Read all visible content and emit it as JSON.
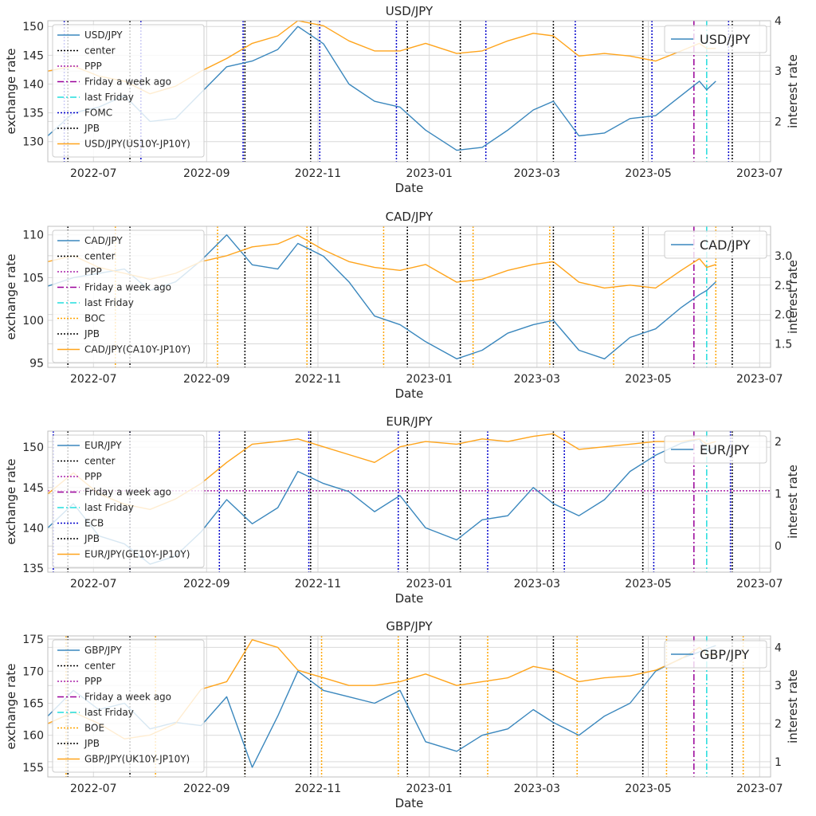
{
  "colors": {
    "rate_line": "#3a87bd",
    "spread_line": "#ffa41b",
    "center": "#000000",
    "ppp": "#aa22aa",
    "week_ago": "#990099",
    "last_friday": "#22dddd",
    "fomc": "#0000cc",
    "ecb": "#0000cc",
    "boc": "#ffa500",
    "boe": "#ffa500",
    "jpb": "#000000",
    "grid": "#d9d9d9"
  },
  "x_ticks": [
    "2022-07",
    "2022-09",
    "2022-11",
    "2023-01",
    "2023-03",
    "2023-05",
    "2023-07"
  ],
  "chart_data": [
    {
      "type": "line",
      "title": "USD/JPY",
      "xlabel": "Date",
      "ylabel": "exchange rate",
      "ylabel_right": "interest rate",
      "xlim": [
        "2022-06-06",
        "2023-07-07"
      ],
      "ylim": [
        126.5,
        151
      ],
      "ylim_right": [
        1.2,
        4.0
      ],
      "yticks": [
        130,
        135,
        140,
        145,
        150
      ],
      "yticks_right": [
        2,
        3,
        4
      ],
      "legend_inner": [
        "USD/JPY",
        "center",
        "PPP",
        "Friday a week ago",
        "last Friday",
        "FOMC",
        "JPB",
        "USD/JPY(US10Y-JP10Y)"
      ],
      "legend_right": "USD/JPY",
      "bank_kind": "fomc",
      "ppp_value": null,
      "rate_series": {
        "name": "USD/JPY",
        "x": [
          "2022-06-06",
          "2022-06-20",
          "2022-07-04",
          "2022-07-18",
          "2022-08-01",
          "2022-08-15",
          "2022-08-29",
          "2022-09-12",
          "2022-09-26",
          "2022-10-10",
          "2022-10-21",
          "2022-11-04",
          "2022-11-18",
          "2022-12-02",
          "2022-12-16",
          "2022-12-30",
          "2023-01-16",
          "2023-01-30",
          "2023-02-13",
          "2023-02-27",
          "2023-03-10",
          "2023-03-24",
          "2023-04-07",
          "2023-04-21",
          "2023-05-05",
          "2023-05-19",
          "2023-05-29",
          "2023-06-02",
          "2023-06-07"
        ],
        "values": [
          131,
          135,
          136,
          138,
          133.5,
          134,
          138.5,
          143,
          144,
          146,
          150,
          147,
          140,
          137,
          136,
          132,
          128.5,
          129,
          132,
          135.5,
          137,
          131,
          131.5,
          134,
          134.5,
          138,
          140.5,
          139,
          140.5
        ]
      },
      "spread_series": {
        "name": "USD/JPY(US10Y-JP10Y)",
        "x": [
          "2022-06-06",
          "2022-06-20",
          "2022-07-04",
          "2022-07-18",
          "2022-08-01",
          "2022-08-15",
          "2022-08-29",
          "2022-09-12",
          "2022-09-26",
          "2022-10-10",
          "2022-10-21",
          "2022-11-04",
          "2022-11-18",
          "2022-12-02",
          "2022-12-16",
          "2022-12-30",
          "2023-01-16",
          "2023-01-30",
          "2023-02-13",
          "2023-02-27",
          "2023-03-10",
          "2023-03-24",
          "2023-04-07",
          "2023-04-21",
          "2023-05-05",
          "2023-05-19",
          "2023-05-29",
          "2023-06-02",
          "2023-06-07"
        ],
        "values": [
          3.0,
          3.1,
          2.9,
          2.8,
          2.55,
          2.7,
          3.0,
          3.25,
          3.55,
          3.7,
          4.0,
          3.9,
          3.6,
          3.4,
          3.4,
          3.55,
          3.35,
          3.4,
          3.6,
          3.75,
          3.7,
          3.3,
          3.35,
          3.3,
          3.2,
          3.4,
          3.55,
          3.45,
          3.45
        ]
      },
      "events": {
        "center": [
          "2023-04-28"
        ],
        "jpb": [
          "2022-06-17",
          "2022-07-21",
          "2022-09-22",
          "2022-10-28",
          "2022-12-20",
          "2023-01-18",
          "2023-03-10",
          "2023-04-28",
          "2023-06-16"
        ],
        "bank": [
          "2022-06-15",
          "2022-07-27",
          "2022-09-21",
          "2022-11-02",
          "2022-12-14",
          "2023-02-01",
          "2023-03-22",
          "2023-05-03",
          "2023-06-14"
        ],
        "week_ago": [
          "2023-05-26"
        ],
        "last_friday": [
          "2023-06-02"
        ]
      }
    },
    {
      "type": "line",
      "title": "CAD/JPY",
      "xlabel": "Date",
      "ylabel": "exchange rate",
      "ylabel_right": "interest rate",
      "xlim": [
        "2022-06-06",
        "2023-07-07"
      ],
      "ylim": [
        94.5,
        111
      ],
      "ylim_right": [
        1.1,
        3.5
      ],
      "yticks": [
        95,
        100,
        105,
        110
      ],
      "yticks_right": [
        1.5,
        2.0,
        2.5,
        3.0
      ],
      "legend_inner": [
        "CAD/JPY",
        "center",
        "PPP",
        "Friday a week ago",
        "last Friday",
        "BOC",
        "JPB",
        "CAD/JPY(CA10Y-JP10Y)"
      ],
      "legend_right": "CAD/JPY",
      "bank_kind": "boc",
      "ppp_value": null,
      "rate_series": {
        "name": "CAD/JPY",
        "x": [
          "2022-06-06",
          "2022-06-20",
          "2022-07-04",
          "2022-07-18",
          "2022-08-01",
          "2022-08-15",
          "2022-08-29",
          "2022-09-12",
          "2022-09-26",
          "2022-10-10",
          "2022-10-21",
          "2022-11-04",
          "2022-11-18",
          "2022-12-02",
          "2022-12-16",
          "2022-12-30",
          "2023-01-16",
          "2023-01-30",
          "2023-02-13",
          "2023-02-27",
          "2023-03-10",
          "2023-03-24",
          "2023-04-07",
          "2023-04-21",
          "2023-05-05",
          "2023-05-19",
          "2023-05-29",
          "2023-06-02",
          "2023-06-07"
        ],
        "values": [
          104,
          105,
          105.5,
          106,
          103.5,
          104.5,
          107,
          110,
          106.5,
          106,
          109,
          107.5,
          104.5,
          100.5,
          99.5,
          97.5,
          95.5,
          96.5,
          98.5,
          99.5,
          100,
          96.5,
          95.5,
          98,
          99,
          101.5,
          103,
          103.5,
          104.5
        ]
      },
      "spread_series": {
        "name": "CAD/JPY(CA10Y-JP10Y)",
        "x": [
          "2022-06-06",
          "2022-06-20",
          "2022-07-04",
          "2022-07-18",
          "2022-08-01",
          "2022-08-15",
          "2022-08-29",
          "2022-09-12",
          "2022-09-26",
          "2022-10-10",
          "2022-10-21",
          "2022-11-04",
          "2022-11-18",
          "2022-12-02",
          "2022-12-16",
          "2022-12-30",
          "2023-01-16",
          "2023-01-30",
          "2023-02-13",
          "2023-02-27",
          "2023-03-10",
          "2023-03-24",
          "2023-04-07",
          "2023-04-21",
          "2023-05-05",
          "2023-05-19",
          "2023-05-29",
          "2023-06-02",
          "2023-06-07"
        ],
        "values": [
          2.9,
          3.0,
          2.8,
          2.7,
          2.6,
          2.7,
          2.9,
          3.0,
          3.15,
          3.2,
          3.35,
          3.1,
          2.9,
          2.8,
          2.75,
          2.85,
          2.55,
          2.6,
          2.75,
          2.85,
          2.9,
          2.55,
          2.45,
          2.5,
          2.45,
          2.75,
          2.95,
          2.8,
          2.85
        ]
      },
      "events": {
        "center": [
          "2023-04-28"
        ],
        "jpb": [
          "2022-06-17",
          "2022-07-21",
          "2022-09-22",
          "2022-10-28",
          "2022-12-20",
          "2023-01-18",
          "2023-03-10",
          "2023-04-28",
          "2023-06-16"
        ],
        "bank": [
          "2022-06-01",
          "2022-07-13",
          "2022-09-07",
          "2022-10-26",
          "2022-12-07",
          "2023-01-25",
          "2023-03-08",
          "2023-04-12",
          "2023-06-07"
        ],
        "week_ago": [
          "2023-05-26"
        ],
        "last_friday": [
          "2023-06-02"
        ]
      }
    },
    {
      "type": "line",
      "title": "EUR/JPY",
      "xlabel": "Date",
      "ylabel": "exchange rate",
      "ylabel_right": "interest rate",
      "xlim": [
        "2022-06-06",
        "2023-07-07"
      ],
      "ylim": [
        134.5,
        152
      ],
      "ylim_right": [
        -0.5,
        2.2
      ],
      "yticks": [
        135,
        140,
        145,
        150
      ],
      "yticks_right": [
        0,
        1,
        2
      ],
      "legend_inner": [
        "EUR/JPY",
        "center",
        "PPP",
        "Friday a week ago",
        "last Friday",
        "ECB",
        "JPB",
        "EUR/JPY(GE10Y-JP10Y)"
      ],
      "legend_right": "EUR/JPY",
      "bank_kind": "ecb",
      "ppp_value": 144.6,
      "rate_series": {
        "name": "EUR/JPY",
        "x": [
          "2022-06-06",
          "2022-06-20",
          "2022-07-04",
          "2022-07-18",
          "2022-08-01",
          "2022-08-15",
          "2022-08-29",
          "2022-09-12",
          "2022-09-26",
          "2022-10-10",
          "2022-10-21",
          "2022-11-04",
          "2022-11-18",
          "2022-12-02",
          "2022-12-16",
          "2022-12-30",
          "2023-01-16",
          "2023-01-30",
          "2023-02-13",
          "2023-02-27",
          "2023-03-10",
          "2023-03-24",
          "2023-04-07",
          "2023-04-21",
          "2023-05-05",
          "2023-05-19",
          "2023-05-29",
          "2023-06-02",
          "2023-06-07"
        ],
        "values": [
          140,
          143,
          139,
          138,
          135.5,
          136.5,
          139.5,
          143.5,
          140.5,
          142.5,
          147,
          145.5,
          144.5,
          142,
          144,
          140,
          138.5,
          141,
          141.5,
          145,
          143,
          141.5,
          143.5,
          147,
          149,
          150.5,
          151,
          149.5,
          150
        ]
      },
      "spread_series": {
        "name": "EUR/JPY(GE10Y-JP10Y)",
        "x": [
          "2022-06-06",
          "2022-06-20",
          "2022-07-04",
          "2022-07-18",
          "2022-08-01",
          "2022-08-15",
          "2022-08-29",
          "2022-09-12",
          "2022-09-26",
          "2022-10-10",
          "2022-10-21",
          "2022-11-04",
          "2022-11-18",
          "2022-12-02",
          "2022-12-16",
          "2022-12-30",
          "2023-01-16",
          "2023-01-30",
          "2023-02-13",
          "2023-02-27",
          "2023-03-10",
          "2023-03-24",
          "2023-04-07",
          "2023-04-21",
          "2023-05-05",
          "2023-05-19",
          "2023-05-29",
          "2023-06-02",
          "2023-06-07"
        ],
        "values": [
          1.0,
          1.4,
          1.0,
          0.8,
          0.7,
          0.9,
          1.2,
          1.6,
          1.95,
          2.0,
          2.05,
          1.9,
          1.75,
          1.6,
          1.9,
          2.0,
          1.95,
          2.05,
          2.0,
          2.1,
          2.15,
          1.85,
          1.9,
          1.95,
          2.0,
          2.0,
          2.05,
          1.95,
          2.0
        ]
      },
      "events": {
        "center": [
          "2023-04-28"
        ],
        "jpb": [
          "2022-06-17",
          "2022-07-21",
          "2022-09-22",
          "2022-10-28",
          "2022-12-20",
          "2023-01-18",
          "2023-03-10",
          "2023-04-28",
          "2023-06-16"
        ],
        "bank": [
          "2022-06-09",
          "2022-07-21",
          "2022-09-08",
          "2022-10-27",
          "2022-12-15",
          "2023-02-02",
          "2023-03-16",
          "2023-05-04",
          "2023-06-15"
        ],
        "week_ago": [
          "2023-05-26"
        ],
        "last_friday": [
          "2023-06-02"
        ]
      }
    },
    {
      "type": "line",
      "title": "GBP/JPY",
      "xlabel": "Date",
      "ylabel": "exchange rate",
      "ylabel_right": "interest rate",
      "xlim": [
        "2022-06-06",
        "2023-07-07"
      ],
      "ylim": [
        153.5,
        175.5
      ],
      "ylim_right": [
        0.6,
        4.3
      ],
      "yticks": [
        155,
        160,
        165,
        170,
        175
      ],
      "yticks_right": [
        1,
        2,
        3,
        4
      ],
      "legend_inner": [
        "GBP/JPY",
        "center",
        "PPP",
        "Friday a week ago",
        "last Friday",
        "BOE",
        "JPB",
        "GBP/JPY(UK10Y-JP10Y)"
      ],
      "legend_right": "GBP/JPY",
      "bank_kind": "boe",
      "ppp_value": null,
      "rate_series": {
        "name": "GBP/JPY",
        "x": [
          "2022-06-06",
          "2022-06-20",
          "2022-07-04",
          "2022-07-18",
          "2022-08-01",
          "2022-08-15",
          "2022-08-29",
          "2022-09-12",
          "2022-09-26",
          "2022-10-10",
          "2022-10-21",
          "2022-11-04",
          "2022-11-18",
          "2022-12-02",
          "2022-12-16",
          "2022-12-30",
          "2023-01-16",
          "2023-01-30",
          "2023-02-13",
          "2023-02-27",
          "2023-03-10",
          "2023-03-24",
          "2023-04-07",
          "2023-04-21",
          "2023-05-05",
          "2023-05-19",
          "2023-05-29",
          "2023-06-02",
          "2023-06-07"
        ],
        "values": [
          163,
          167,
          164,
          165,
          161,
          162,
          161.5,
          166,
          155,
          163,
          170,
          167,
          166,
          165,
          167,
          159,
          157.5,
          160,
          161,
          164,
          162,
          160,
          163,
          165,
          170,
          172,
          173,
          173.5,
          174
        ]
      },
      "spread_series": {
        "name": "GBP/JPY(UK10Y-JP10Y)",
        "x": [
          "2022-06-06",
          "2022-06-20",
          "2022-07-04",
          "2022-07-18",
          "2022-08-01",
          "2022-08-15",
          "2022-08-29",
          "2022-09-12",
          "2022-09-26",
          "2022-10-10",
          "2022-10-21",
          "2022-11-04",
          "2022-11-18",
          "2022-12-02",
          "2022-12-16",
          "2022-12-30",
          "2023-01-16",
          "2023-01-30",
          "2023-02-13",
          "2023-02-27",
          "2023-03-10",
          "2023-03-24",
          "2023-04-07",
          "2023-04-21",
          "2023-05-05",
          "2023-05-19",
          "2023-05-29",
          "2023-06-02",
          "2023-06-07"
        ],
        "values": [
          2.0,
          2.3,
          2.0,
          1.6,
          1.7,
          2.0,
          2.9,
          3.1,
          4.2,
          4.0,
          3.4,
          3.2,
          3.0,
          3.0,
          3.1,
          3.3,
          3.0,
          3.1,
          3.2,
          3.5,
          3.4,
          3.1,
          3.2,
          3.25,
          3.4,
          3.7,
          4.0,
          3.8,
          3.8
        ]
      },
      "events": {
        "center": [
          "2023-04-28"
        ],
        "jpb": [
          "2022-06-17",
          "2022-07-21",
          "2022-09-22",
          "2022-10-28",
          "2022-12-20",
          "2023-01-18",
          "2023-03-10",
          "2023-04-28",
          "2023-06-16"
        ],
        "bank": [
          "2022-06-16",
          "2022-08-04",
          "2022-09-22",
          "2022-11-03",
          "2022-12-15",
          "2023-02-02",
          "2023-03-23",
          "2023-05-11",
          "2023-06-22"
        ],
        "week_ago": [
          "2023-05-26"
        ],
        "last_friday": [
          "2023-06-02"
        ]
      }
    }
  ]
}
